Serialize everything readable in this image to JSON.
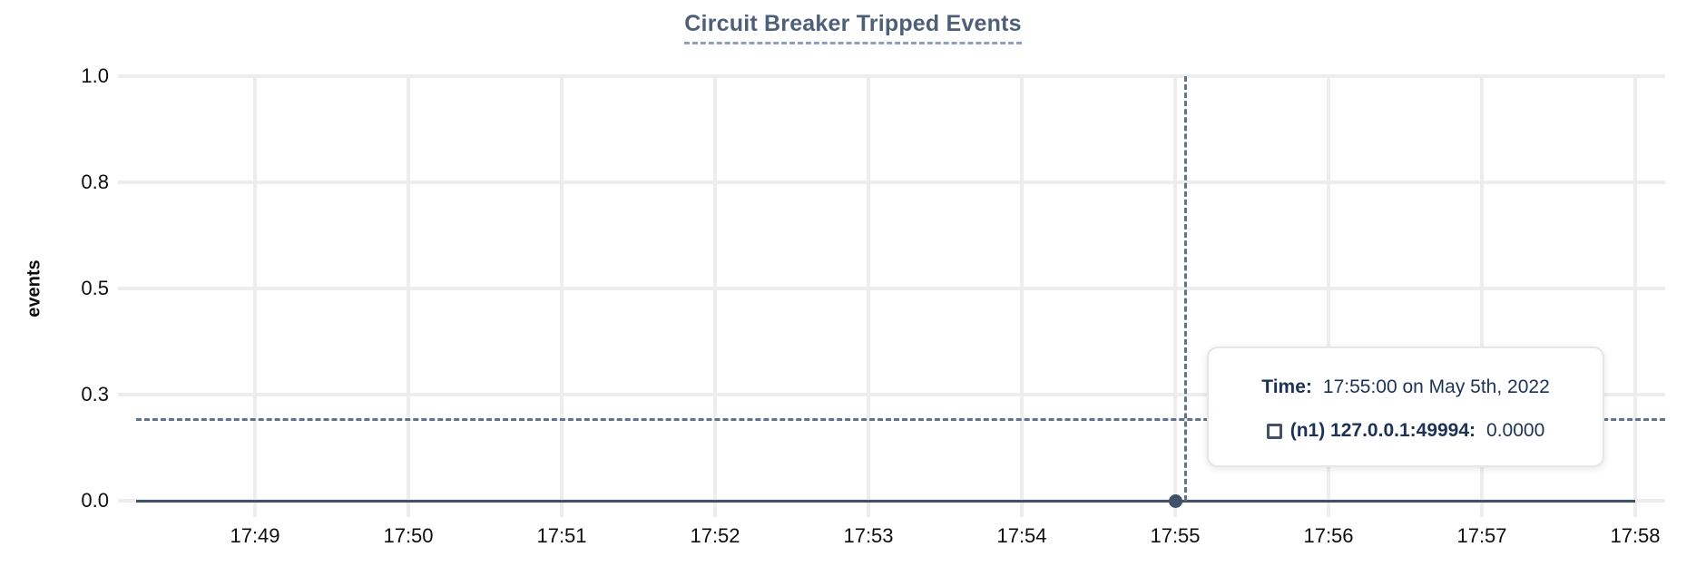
{
  "title": "Circuit Breaker Tripped Events",
  "y_axis": {
    "title": "events",
    "tick_labels": [
      "1.0",
      "0.8",
      "0.5",
      "0.3",
      "0.0"
    ]
  },
  "x_axis": {
    "tick_labels": [
      "17:49",
      "17:50",
      "17:51",
      "17:52",
      "17:53",
      "17:54",
      "17:55",
      "17:56",
      "17:57",
      "17:58"
    ]
  },
  "tooltip": {
    "time_label": "Time:",
    "time_value": "17:55:00 on May 5th, 2022",
    "series_marker": "square-outline",
    "series_label": "(n1) 127.0.0.1:49994:",
    "series_value": "0.0000"
  },
  "chart_data": {
    "type": "line",
    "title": "Circuit Breaker Tripped Events",
    "xlabel": "",
    "ylabel": "events",
    "x": [
      "17:49",
      "17:50",
      "17:51",
      "17:52",
      "17:53",
      "17:54",
      "17:55",
      "17:56",
      "17:57",
      "17:58"
    ],
    "series": [
      {
        "name": "(n1) 127.0.0.1:49994",
        "values": [
          0,
          0,
          0,
          0,
          0,
          0,
          0,
          0,
          0,
          0
        ]
      }
    ],
    "ylim": [
      0,
      1
    ],
    "y_ticks": [
      0.0,
      0.25,
      0.5,
      0.75,
      1.0
    ],
    "y_tick_labels": [
      "0.0",
      "0.3",
      "0.5",
      "0.8",
      "1.0"
    ],
    "grid": true,
    "legend_position": "none",
    "hover_point": {
      "x": "17:55:00",
      "y": 0.0
    },
    "crosshair": {
      "x": "17:55:00",
      "y_fraction": 0.19
    }
  },
  "colors": {
    "title": "#4d6078",
    "title_underline": "#8fa0bd",
    "grid": "#ededed",
    "series_line": "#42506a",
    "crosshair": "#5f7389",
    "axis_text": "#0e0e0e",
    "tooltip_text": "#1c3355",
    "tooltip_border": "#e6e6e6"
  }
}
